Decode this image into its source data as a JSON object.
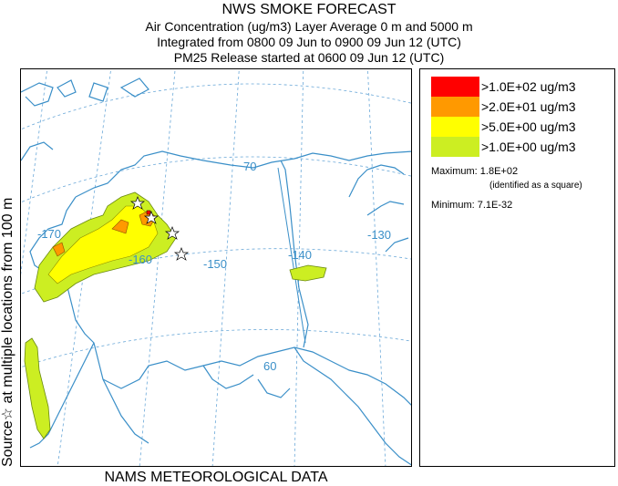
{
  "header": {
    "title": "NWS SMOKE FORECAST",
    "line1": "Air Concentration (ug/m3) Layer Average    0 m and  5000 m",
    "line2": "Integrated from 0800 09 Jun to 0900 09 Jun 12 (UTC)",
    "line3": "PM25 Release started at 0600 09 Jun 12 (UTC)"
  },
  "side_label": "Source☆ at multiple locations   from   100 m",
  "bottom_label": "NAMS METEOROLOGICAL DATA",
  "map": {
    "graticule_labels": [
      "-170",
      "-160",
      "-150",
      "-140",
      "-130",
      "70",
      "60"
    ],
    "colors": {
      "coast": "#3a8fc8",
      "graticule": "#6aa8d8",
      "level1": "#ccee22",
      "level2": "#ffff00",
      "level3": "#ff9900",
      "level4": "#ff0000"
    }
  },
  "legend": {
    "items": [
      {
        "label": ">1.0E+02 ug/m3",
        "color": "#ff0000"
      },
      {
        "label": ">2.0E+01 ug/m3",
        "color": "#ff9900"
      },
      {
        "label": ">5.0E+00 ug/m3",
        "color": "#ffff00"
      },
      {
        "label": ">1.0E+00 ug/m3",
        "color": "#ccee22"
      }
    ],
    "maximum": "Maximum: 1.8E+02",
    "max_note": "(identified as a square)",
    "minimum": "Minimum: 7.1E-32"
  }
}
